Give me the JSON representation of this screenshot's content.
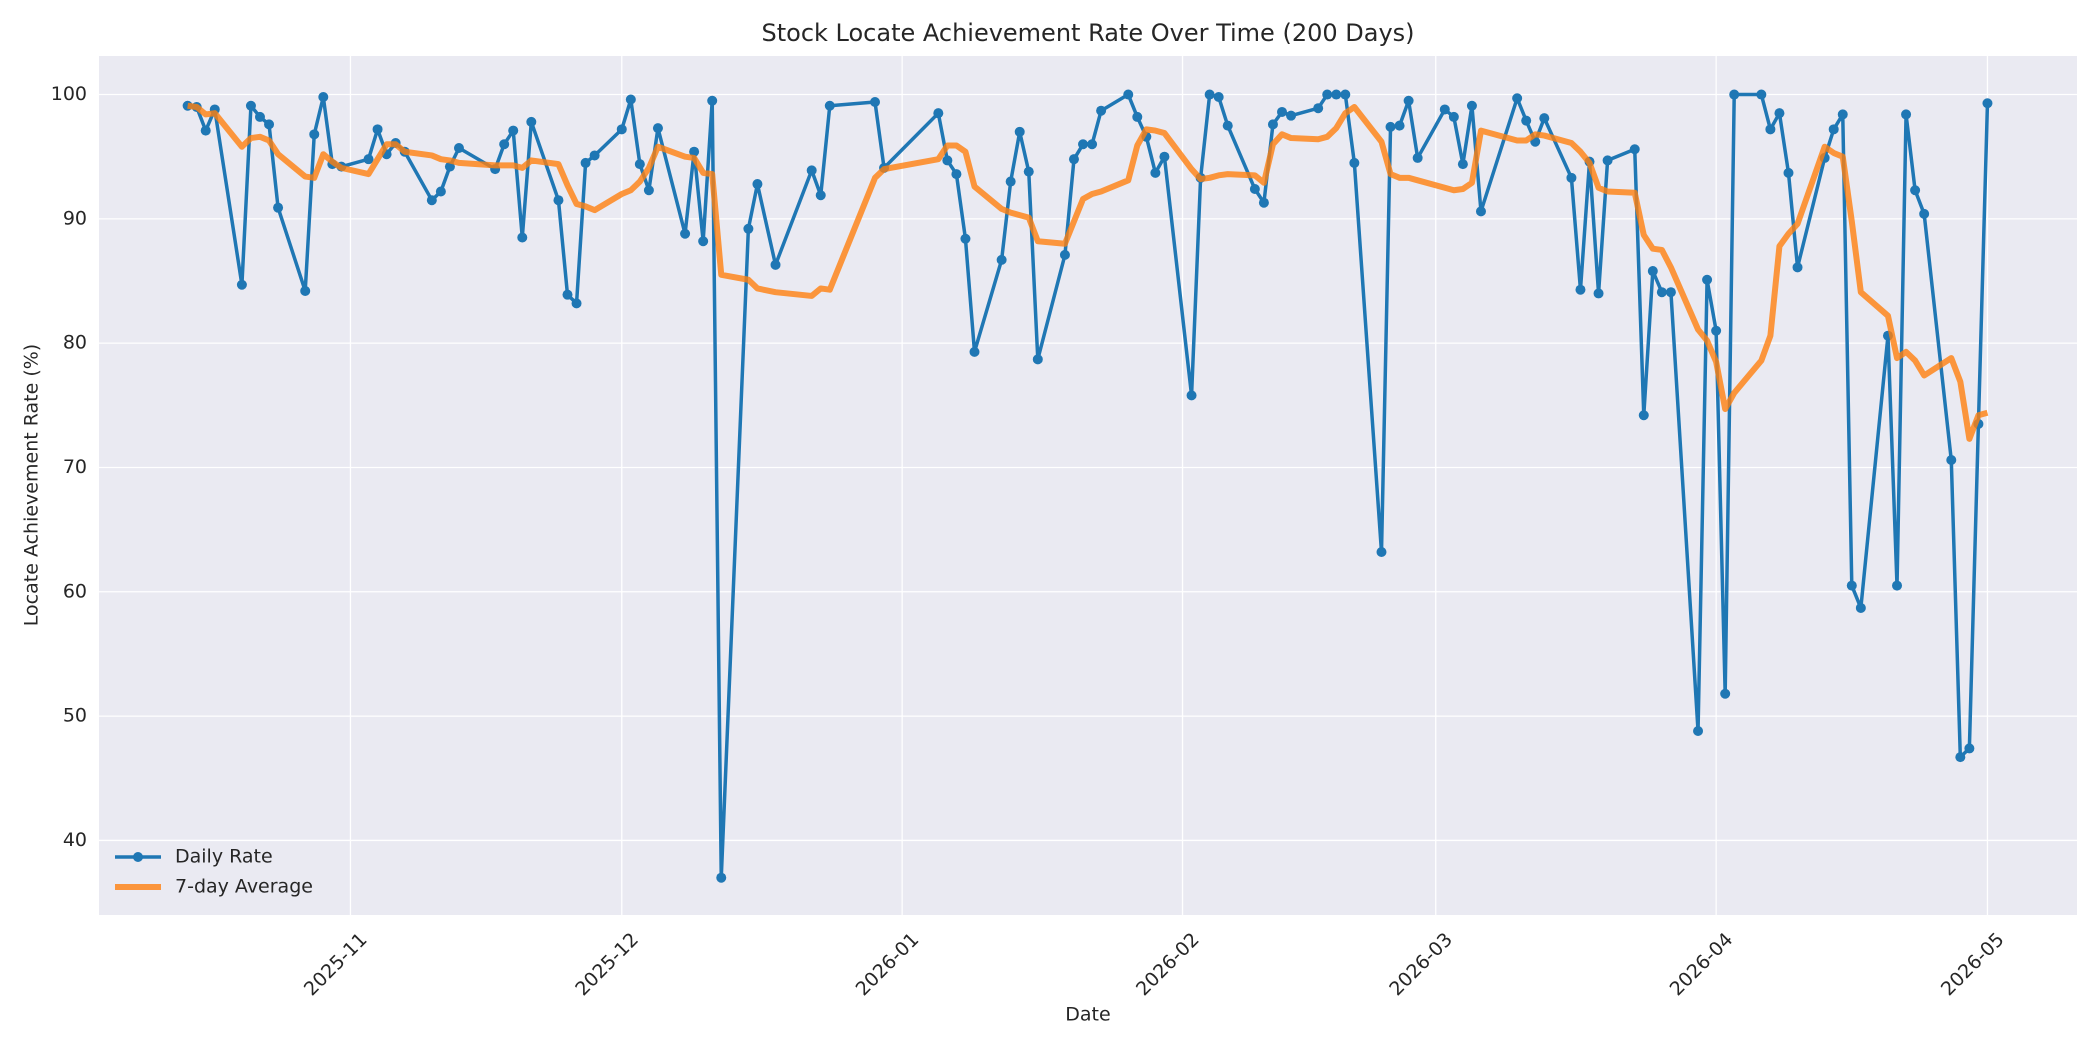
{
  "chart_data": {
    "type": "line",
    "title": "Stock Locate Achievement Rate Over Time (200 Days)",
    "xlabel": "Date",
    "ylabel": "Locate Achievement Rate (%)",
    "x": [
      13,
      14,
      15,
      16,
      19,
      20,
      21,
      22,
      23,
      26,
      27,
      28,
      29,
      30,
      33,
      34,
      35,
      36,
      37,
      40,
      41,
      42,
      43,
      47,
      48,
      49,
      50,
      51,
      54,
      55,
      56,
      57,
      58,
      61,
      62,
      63,
      64,
      65,
      68,
      69,
      70,
      71,
      72,
      75,
      76,
      78,
      82,
      83,
      84,
      89,
      90,
      96,
      97,
      98,
      99,
      100,
      103,
      104,
      105,
      106,
      107,
      110,
      111,
      112,
      113,
      114,
      117,
      118,
      119,
      120,
      121,
      124,
      125,
      126,
      127,
      128,
      131,
      132,
      133,
      134,
      135,
      138,
      139,
      140,
      141,
      142,
      145,
      146,
      147,
      148,
      149,
      152,
      153,
      154,
      155,
      156,
      160,
      161,
      162,
      163,
      166,
      167,
      168,
      169,
      170,
      173,
      174,
      175,
      176,
      177,
      180,
      181,
      182,
      183,
      184,
      187,
      188,
      189,
      190,
      191,
      194,
      195,
      196,
      197,
      198,
      201,
      202,
      203,
      204,
      205,
      208,
      209,
      210,
      211,
      212
    ],
    "series": [
      {
        "name": "Daily Rate",
        "color": "#1f77b4",
        "marker": true,
        "values": [
          99.1,
          99.0,
          97.1,
          98.8,
          84.7,
          99.1,
          98.2,
          97.6,
          90.9,
          84.2,
          96.8,
          99.8,
          94.4,
          94.2,
          94.8,
          97.2,
          95.2,
          96.1,
          95.4,
          91.5,
          92.2,
          94.2,
          95.7,
          94.0,
          96.0,
          97.1,
          88.5,
          97.8,
          91.5,
          83.9,
          83.2,
          94.5,
          95.1,
          97.2,
          99.6,
          94.4,
          92.3,
          97.3,
          88.8,
          95.4,
          88.2,
          99.5,
          37.0,
          89.2,
          92.8,
          86.3,
          93.9,
          91.9,
          99.1,
          99.4,
          94.1,
          98.5,
          94.7,
          93.6,
          88.4,
          79.3,
          86.7,
          93.0,
          97.0,
          93.8,
          78.7,
          87.1,
          94.8,
          96.0,
          96.0,
          98.7,
          100,
          98.2,
          96.6,
          93.7,
          95.0,
          75.8,
          93.3,
          100,
          99.8,
          97.5,
          92.4,
          91.3,
          97.6,
          98.6,
          98.3,
          98.9,
          100,
          100,
          100,
          94.5,
          63.2,
          97.4,
          97.5,
          99.5,
          94.9,
          98.8,
          98.2,
          94.4,
          99.1,
          90.6,
          99.7,
          97.9,
          96.2,
          98.1,
          93.3,
          84.3,
          94.6,
          84.0,
          94.7,
          95.6,
          74.2,
          85.8,
          84.1,
          84.1,
          48.8,
          85.1,
          81.0,
          51.8,
          100,
          100,
          97.2,
          98.5,
          93.7,
          86.1,
          94.9,
          97.2,
          98.4,
          60.5,
          58.7,
          80.6,
          60.5,
          98.4,
          92.3,
          90.4,
          70.6,
          46.7,
          47.4,
          73.5,
          99.3
        ]
      },
      {
        "name": "7-day Average",
        "color": "#ff7f0e",
        "marker": false,
        "values": [
          99.1,
          99.0,
          98.4,
          98.5,
          95.8,
          96.5,
          96.6,
          96.3,
          95.2,
          93.4,
          93.3,
          95.2,
          94.6,
          94.1,
          93.6,
          94.8,
          96.0,
          96.0,
          95.4,
          95.1,
          94.8,
          94.7,
          94.5,
          94.3,
          94.3,
          94.3,
          94.1,
          94.7,
          94.4,
          92.7,
          91.2,
          91.0,
          90.7,
          92.0,
          92.3,
          93.0,
          94.1,
          95.8,
          95.0,
          94.9,
          93.7,
          93.6,
          85.5,
          85.1,
          84.4,
          84.1,
          83.8,
          84.4,
          84.3,
          93.3,
          94.0,
          94.8,
          95.9,
          95.9,
          95.4,
          92.6,
          90.8,
          90.5,
          90.3,
          90.1,
          88.2,
          88.0,
          89.8,
          91.6,
          92.0,
          92.2,
          93.1,
          95.9,
          97.2,
          97.1,
          96.9,
          94.0,
          93.2,
          93.3,
          93.5,
          93.6,
          93.5,
          92.9,
          96.0,
          96.8,
          96.5,
          96.4,
          96.6,
          97.3,
          98.5,
          99.0,
          96.2,
          93.6,
          93.3,
          93.3,
          93.1,
          92.5,
          92.3,
          92.4,
          92.9,
          97.1,
          96.3,
          96.3,
          96.8,
          96.7,
          96.1,
          95.4,
          94.5,
          92.5,
          92.2,
          92.1,
          88.7,
          87.6,
          87.5,
          86.1,
          81.1,
          80.2,
          78.5,
          74.7,
          76.0,
          78.6,
          80.6,
          87.8,
          88.8,
          89.6,
          95.8,
          95.3,
          95.0,
          89.8,
          84.1,
          82.2,
          78.8,
          79.3,
          78.6,
          77.4,
          78.8,
          76.9,
          72.3,
          74.2,
          74.4
        ]
      }
    ],
    "xlim": [
      3.2,
      221.9
    ],
    "xticks": [
      {
        "value": 31,
        "label": "2025-11"
      },
      {
        "value": 61,
        "label": "2025-12"
      },
      {
        "value": 92,
        "label": "2026-01"
      },
      {
        "value": 123,
        "label": "2026-02"
      },
      {
        "value": 151,
        "label": "2026-03"
      },
      {
        "value": 182,
        "label": "2026-04"
      },
      {
        "value": 212,
        "label": "2026-05"
      }
    ],
    "ylim": [
      34,
      103.1
    ],
    "yticks": [
      40,
      50,
      60,
      70,
      80,
      90,
      100
    ],
    "grid": true,
    "legend": "lower left"
  }
}
